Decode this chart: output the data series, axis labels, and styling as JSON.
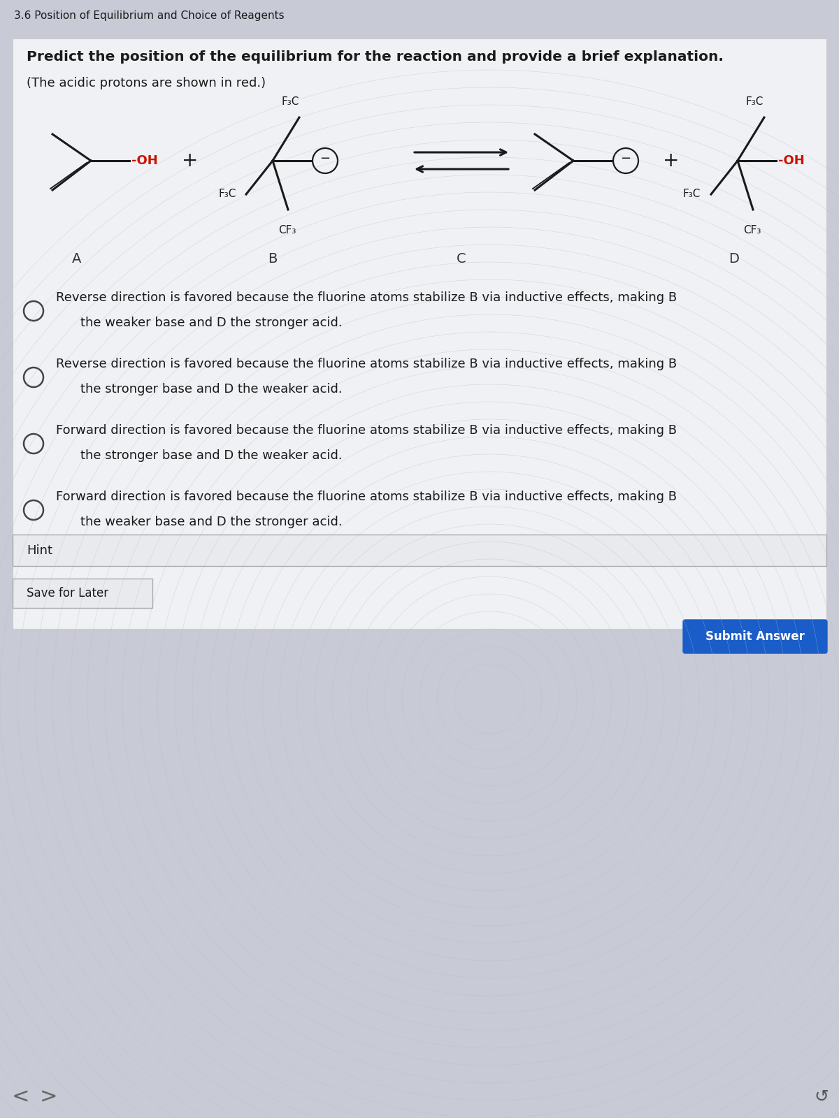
{
  "title": "3.6 Position of Equilibrium and Choice of Reagents",
  "question": "Predict the position of the equilibrium for the reaction and provide a brief explanation.",
  "subtext": "(The acidic protons are shown in red.)",
  "bg_color": "#c8cad6",
  "card_color": "#f0f1f4",
  "options": [
    "Reverse direction is favored because the fluorine atoms stabilize B via inductive effects, making B\nthe weaker base and D the stronger acid.",
    "Reverse direction is favored because the fluorine atoms stabilize B via inductive effects, making B\nthe stronger base and D the weaker acid.",
    "Forward direction is favored because the fluorine atoms stabilize B via inductive effects, making B\nthe stronger base and D the weaker acid.",
    "Forward direction is favored because the fluorine atoms stabilize B via inductive effects, making B\nthe weaker base and D the stronger acid."
  ],
  "hint_text": "Hint",
  "save_text": "Save for Later",
  "submit_text": "Submit Answer",
  "labels": [
    "A",
    "B",
    "C",
    "D"
  ]
}
